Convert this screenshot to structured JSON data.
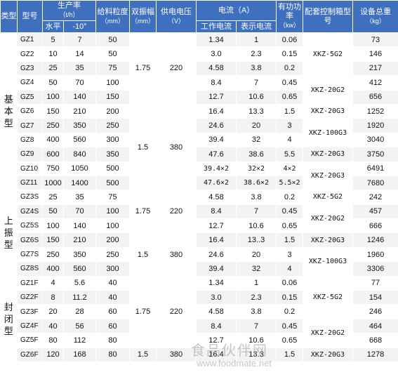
{
  "headers": {
    "type": "类型",
    "model": "型号",
    "capacity": "生产率",
    "capacity_unit": "（t/h）",
    "capacity_horizontal": "水平",
    "capacity_tilt": "-10°",
    "feed_size": "给料粒度",
    "feed_size_unit": "（mm）",
    "amplitude": "双振幅",
    "amplitude_unit": "（mm）",
    "voltage": "供电电压",
    "voltage_unit": "（V）",
    "current": "电流（A）",
    "working_current": "工作电流",
    "indicated_current": "表示电流",
    "power": "有功功率",
    "power_unit": "（kw）",
    "control_box": "配套控制箱型号",
    "weight": "设备总重",
    "weight_unit": "（kg）"
  },
  "types": {
    "basic": "基本型",
    "upper": "上振型",
    "closed": "封闭型"
  },
  "rows": [
    {
      "model": "GZ1",
      "h": "5",
      "t": "7",
      "feed": "50",
      "wc": "1.34",
      "ic": "1",
      "pf": "0.06",
      "wt": "73"
    },
    {
      "model": "GZ2",
      "h": "10",
      "t": "14",
      "feed": "50",
      "wc": "3.0",
      "ic": "2.3",
      "pf": "0.15",
      "wt": "146"
    },
    {
      "model": "GZ3",
      "h": "25",
      "t": "35",
      "feed": "75",
      "wc": "4.58",
      "ic": "3.8",
      "pf": "0.2",
      "wt": "217"
    },
    {
      "model": "GZ4",
      "h": "50",
      "t": "70",
      "feed": "100",
      "wc": "8.4",
      "ic": "7",
      "pf": "0.45",
      "wt": "412"
    },
    {
      "model": "GZ5",
      "h": "100",
      "t": "140",
      "feed": "150",
      "wc": "12.7",
      "ic": "10.6",
      "pf": "0.65",
      "wt": "656"
    },
    {
      "model": "GZ6",
      "h": "150",
      "t": "210",
      "feed": "200",
      "wc": "16.4",
      "ic": "13.3",
      "pf": "1.5",
      "wt": "1252"
    },
    {
      "model": "GZ7",
      "h": "250",
      "t": "350",
      "feed": "250",
      "wc": "24.6",
      "ic": "20",
      "pf": "3",
      "wt": "1920"
    },
    {
      "model": "GZ8",
      "h": "400",
      "t": "560",
      "feed": "300",
      "wc": "39.4",
      "ic": "32",
      "pf": "4",
      "wt": "3040"
    },
    {
      "model": "GZ9",
      "h": "600",
      "t": "840",
      "feed": "350",
      "wc": "47.6",
      "ic": "38.6",
      "pf": "5.5",
      "wt": "3750"
    },
    {
      "model": "GZ10",
      "h": "750",
      "t": "1050",
      "feed": "500",
      "wc": "39.4×2",
      "ic": "32×2",
      "pf": "4×2",
      "wt": "6491"
    },
    {
      "model": "GZ11",
      "h": "1000",
      "t": "1400",
      "feed": "500",
      "wc": "47.6×2",
      "ic": "38.6×2",
      "pf": "5.5×2",
      "wt": "7680"
    },
    {
      "model": "GZ3S",
      "h": "25",
      "t": "35",
      "feed": "75",
      "wc": "4.58",
      "ic": "3.8",
      "pf": "0.2",
      "wt": "242"
    },
    {
      "model": "GZ4S",
      "h": "50",
      "t": "70",
      "feed": "100",
      "wc": "8.4",
      "ic": "7",
      "pf": "0.45",
      "wt": "457"
    },
    {
      "model": "GZ5S",
      "h": "100",
      "t": "140",
      "feed": "100",
      "wc": "12.7",
      "ic": "10.6",
      "pf": "0.65",
      "wt": "666"
    },
    {
      "model": "GZ6S",
      "h": "150",
      "t": "210",
      "feed": "200",
      "wc": "16.4",
      "ic": "13..3",
      "pf": "1.5",
      "wt": "1246"
    },
    {
      "model": "GZ7S",
      "h": "250",
      "t": "350",
      "feed": "250",
      "wc": "24.6",
      "ic": "20",
      "pf": "3",
      "wt": "1960"
    },
    {
      "model": "GZ8S",
      "h": "400",
      "t": "560",
      "feed": "300",
      "wc": "39.4",
      "ic": "32",
      "pf": "4",
      "wt": "3306"
    },
    {
      "model": "GZ1F",
      "h": "4",
      "t": "5.6",
      "feed": "40",
      "wc": "1.34",
      "ic": "1",
      "pf": "0.06",
      "wt": "77"
    },
    {
      "model": "GZ2F",
      "h": "8",
      "t": "11.2",
      "feed": "40",
      "wc": "3.0",
      "ic": "2.3",
      "pf": "0.15",
      "wt": "154"
    },
    {
      "model": "GZ3F",
      "h": "20",
      "t": "28",
      "feed": "60",
      "wc": "4.58",
      "ic": "3.8",
      "pf": "0.2",
      "wt": "246"
    },
    {
      "model": "GZ4F",
      "h": "40",
      "t": "56",
      "feed": "60",
      "wc": "8.4",
      "ic": "7",
      "pf": "0.45",
      "wt": "464"
    },
    {
      "model": "GZ5F",
      "h": "80",
      "t": "112",
      "feed": "80",
      "wc": "12.7",
      "ic": "10.6",
      "pf": "0.65",
      "wt": "668"
    },
    {
      "model": "GZ6F",
      "h": "120",
      "t": "168",
      "feed": "80",
      "wc": "16.4",
      "ic": "13.3",
      "pf": "1.5",
      "wt": "1278"
    }
  ],
  "spans": {
    "amp_a": "1.75",
    "volt_a": "220",
    "amp_b": "1.5",
    "volt_b": "380",
    "amp_c": "1.75",
    "volt_c": "220",
    "amp_d": "1.5",
    "volt_d": "380",
    "amp_e": "1.75",
    "volt_e": "220",
    "amp_f": "1.5",
    "volt_f": "380"
  },
  "boxes": {
    "b1": "XKZ-5G2",
    "b2": "XKZ-20G2",
    "b3": "XKZ-20G3",
    "b4": "XKZ-100G3",
    "b5": "XKZ-20G3",
    "b6": "XKZ-20G3",
    "b7": "XKZ-5G2",
    "b8": "XKZ-20G2",
    "b9": "XKZ-20G3",
    "b10": "XKZ-100G3",
    "b11": "XKZ-5G2",
    "b12": "XKZ-20G2",
    "b13": "XKZ-20G3"
  },
  "watermark": {
    "title": "食品伙伴网",
    "url": "www.foodmate.net"
  },
  "colors": {
    "header_bg": "#3f6fbf",
    "zebra": "#f3f3f3"
  }
}
